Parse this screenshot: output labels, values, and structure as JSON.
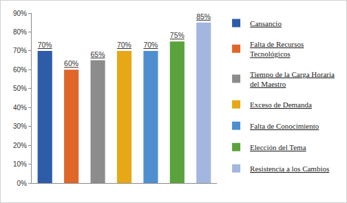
{
  "chart_data": {
    "type": "bar",
    "categories": [
      "Cansancio",
      "Falta de Recursos Tecnológicos",
      "Tiempo de la Carga Horaria del Maestro",
      "Exceso de Demanda",
      "Falta de Conocimiento",
      "Elección del Tema",
      "Resistencia a los Cambios"
    ],
    "values": [
      70,
      60,
      65,
      70,
      70,
      75,
      85
    ],
    "value_labels": [
      "70%",
      "60%",
      "65%",
      "70%",
      "70%",
      "75%",
      "85%"
    ],
    "colors": [
      "#2e5ca8",
      "#e0662a",
      "#8c8c8c",
      "#e6a817",
      "#4f8fd0",
      "#5aa33c",
      "#a3b6e0"
    ],
    "ylim": [
      0,
      90
    ],
    "yticks": [
      {
        "value": 0,
        "label": "0%"
      },
      {
        "value": 10,
        "label": "10%"
      },
      {
        "value": 20,
        "label": "20%"
      },
      {
        "value": 30,
        "label": "30%"
      },
      {
        "value": 40,
        "label": "40%"
      },
      {
        "value": 50,
        "label": "50%"
      },
      {
        "value": 60,
        "label": "60%"
      },
      {
        "value": 70,
        "label": "70%"
      },
      {
        "value": 80,
        "label": "80%"
      },
      {
        "value": 90,
        "label": "90%"
      }
    ],
    "grid": false,
    "legend": "right",
    "data_labels": true,
    "tick_labels": "y"
  }
}
